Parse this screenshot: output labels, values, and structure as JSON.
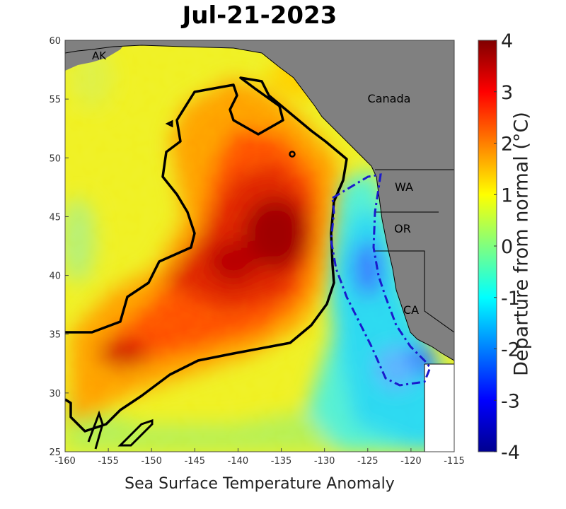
{
  "title": "Jul-21-2023",
  "xlabel": "Sea Surface Temperature Anomaly",
  "colorbar": {
    "label": "Departure from normal (°C)",
    "ticks": [
      "4",
      "3",
      "2",
      "1",
      "0",
      "-1",
      "-2",
      "-3",
      "-4"
    ],
    "range": [
      -4,
      4
    ],
    "colors": [
      "#00008f",
      "#0000ff",
      "#00ffff",
      "#ffff00",
      "#ff0000",
      "#800000"
    ]
  },
  "axes": {
    "lon_ticks": [
      "-160",
      "-155",
      "-150",
      "-145",
      "-140",
      "-135",
      "-130",
      "-125",
      "-120",
      "-115"
    ],
    "lat_ticks": [
      "60",
      "55",
      "50",
      "45",
      "40",
      "35",
      "30",
      "25"
    ],
    "lon_range": [
      -160,
      -115
    ],
    "lat_range": [
      25,
      60
    ]
  },
  "labels": {
    "ak": "AK",
    "canada": "Canada",
    "wa": "WA",
    "or": "OR",
    "ca": "CA"
  },
  "colors": {
    "land": "#808080",
    "heatwave_contour": "#000000",
    "ccs_boundary": "#1a1acc"
  }
}
